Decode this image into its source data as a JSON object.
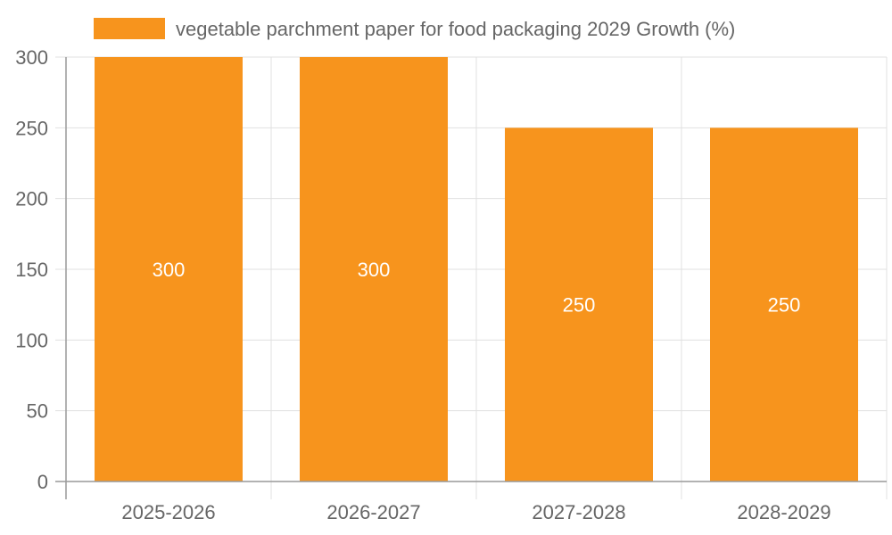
{
  "legend": {
    "label": "vegetable parchment paper for food packaging 2029 Growth (%)",
    "color": "#f7941d"
  },
  "chart_data": {
    "type": "bar",
    "categories": [
      "2025-2026",
      "2026-2027",
      "2027-2028",
      "2028-2029"
    ],
    "series": [
      {
        "name": "vegetable parchment paper for food packaging 2029 Growth (%)",
        "values": [
          300,
          300,
          250,
          250
        ],
        "color": "#f7941d"
      }
    ],
    "ylim": [
      0,
      300
    ],
    "yticks": [
      0,
      50,
      100,
      150,
      200,
      250,
      300
    ],
    "grid": true,
    "legend_position": "top",
    "data_labels": true
  }
}
